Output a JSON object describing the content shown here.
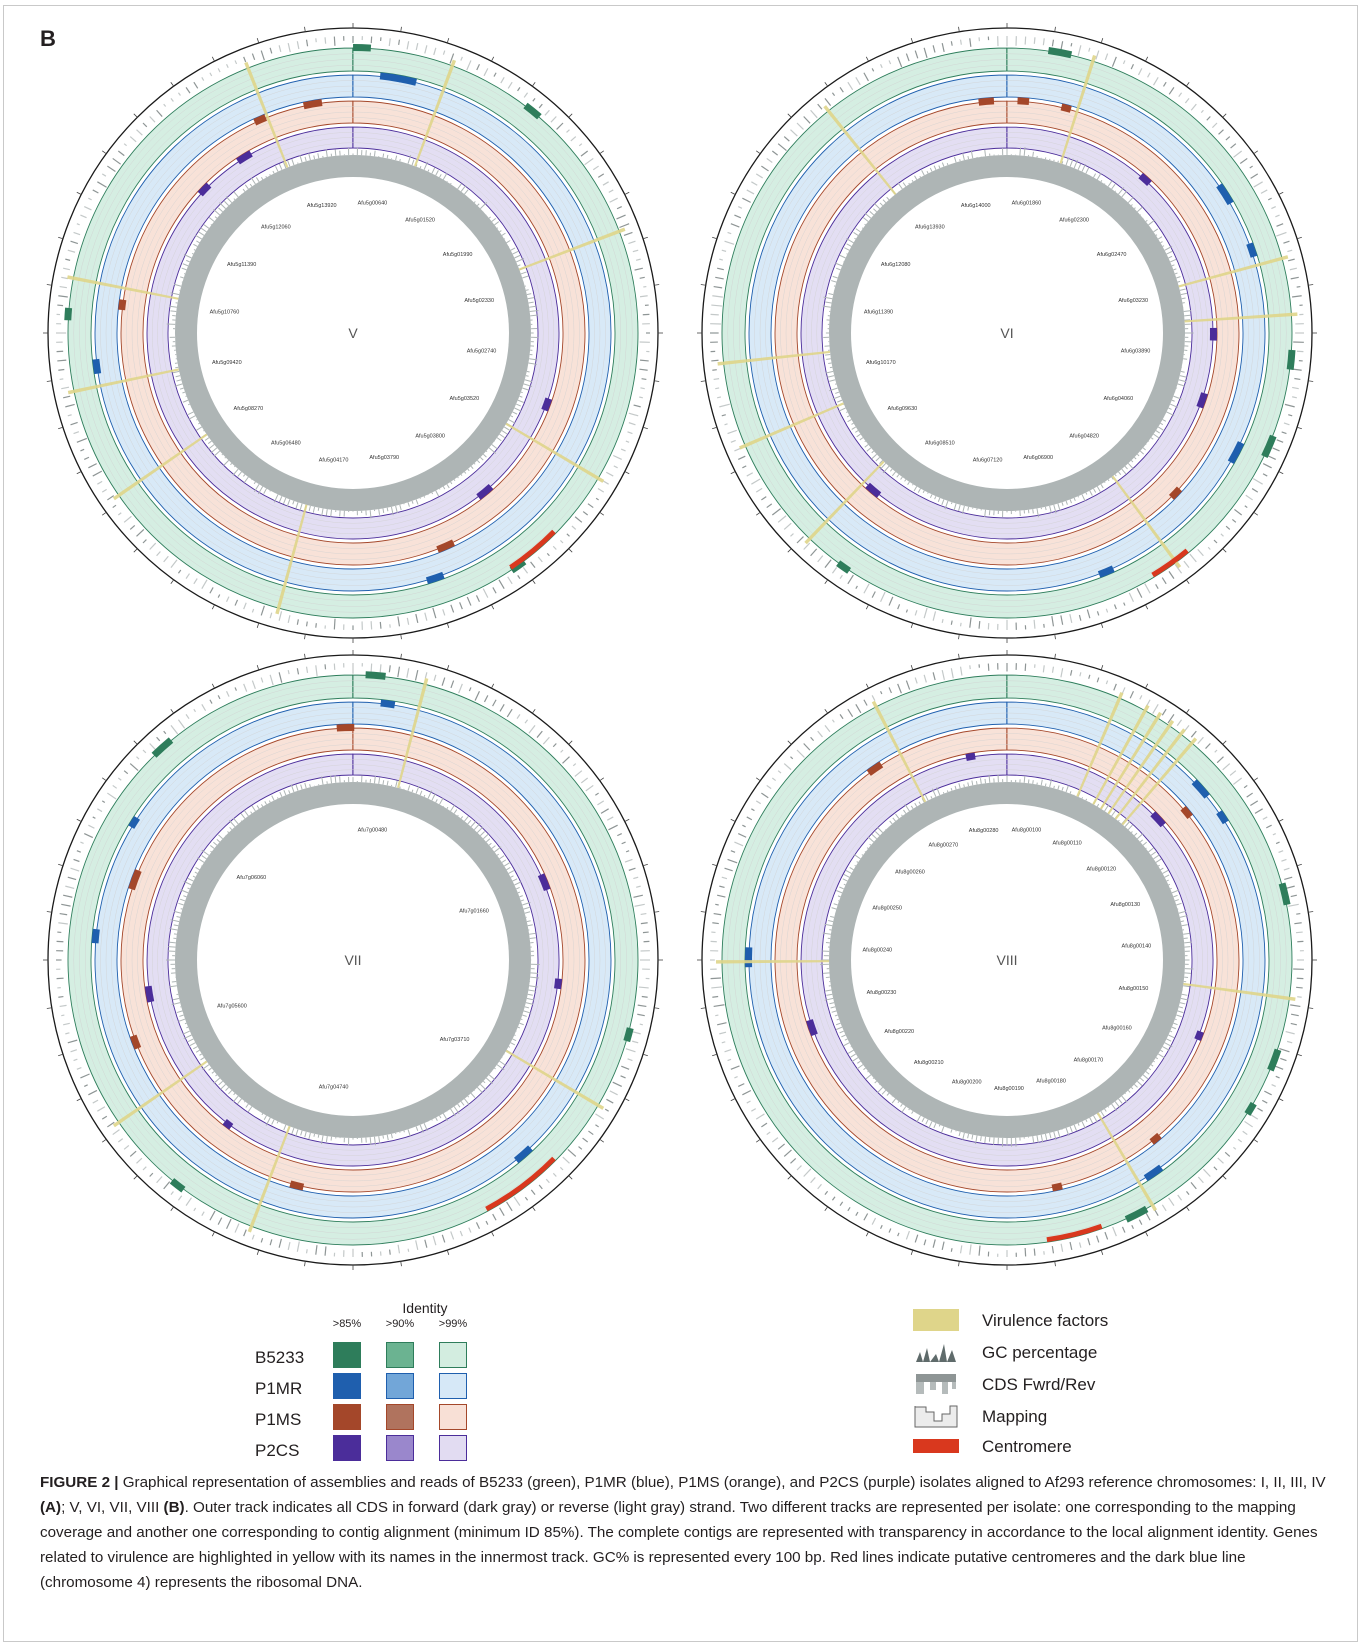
{
  "panel_label": "B",
  "chromosomes": [
    {
      "label": "V",
      "virulence_genes": [
        "Afu5g00640",
        "Afu5g01520",
        "Afu5g01990",
        "Afu5g02330",
        "Afu5g02740",
        "Afu5g03520",
        "Afu5g03800",
        "Afu5g03790",
        "Afu5g04170",
        "Afu5g06480",
        "Afu5g08270",
        "Afu5g09420",
        "Afu5g10760",
        "Afu5g11390",
        "Afu5g12060",
        "Afu5g13920"
      ],
      "centromere": true
    },
    {
      "label": "VI",
      "virulence_genes": [
        "Afu6g01860",
        "Afu6g02300",
        "Afu6g02470",
        "Afu6g03230",
        "Afu6g03890",
        "Afu6g04060",
        "Afu6g04820",
        "Afu6g06900",
        "Afu6g07120",
        "Afu6g08510",
        "Afu6g09630",
        "Afu6g10170",
        "Afu6g11390",
        "Afu6g12080",
        "Afu6g13930",
        "Afu6g14000"
      ],
      "centromere": true
    },
    {
      "label": "VII",
      "virulence_genes": [
        "Afu7g00480",
        "Afu7g01660",
        "Afu7g03710",
        "Afu7g04740",
        "Afu7g05600",
        "Afu7g06060"
      ],
      "centromere": true
    },
    {
      "label": "VIII",
      "virulence_genes": [
        "Afu8g00100",
        "Afu8g00110",
        "Afu8g00120",
        "Afu8g00130",
        "Afu8g00140",
        "Afu8g00150",
        "Afu8g00160",
        "Afu8g00170",
        "Afu8g00180",
        "Afu8g00190",
        "Afu8g00200",
        "Afu8g00210",
        "Afu8g00220",
        "Afu8g00230",
        "Afu8g00240",
        "Afu8g00250",
        "Afu8g00260",
        "Afu8g00270",
        "Afu8g00280"
      ],
      "centromere": true
    }
  ],
  "identity_legend": {
    "title": "Identity",
    "columns": [
      ">85%",
      ">90%",
      ">99%"
    ],
    "isolates": [
      {
        "name": "B5233",
        "colors": [
          "#2e7d5b",
          "#6bb391",
          "#d3ede0"
        ],
        "border": "#2e7d5b"
      },
      {
        "name": "P1MR",
        "colors": [
          "#1f5fae",
          "#72a6d8",
          "#d6e8f7"
        ],
        "border": "#1f5fae"
      },
      {
        "name": "P1MS",
        "colors": [
          "#a4472a",
          "#b0735e",
          "#f8e0d6"
        ],
        "border": "#a4472a"
      },
      {
        "name": "P2CS",
        "colors": [
          "#4b2d9a",
          "#9a87cc",
          "#e2dcf2"
        ],
        "border": "#4b2d9a"
      }
    ]
  },
  "track_legend": [
    {
      "label": "Virulence factors",
      "icon": "virulence-swatch",
      "color": "#dfd58a"
    },
    {
      "label": "GC percentage",
      "icon": "gc-peaks",
      "color": "#5f6b6b"
    },
    {
      "label": "CDS Fwrd/Rev",
      "icon": "cds-bars",
      "color": "#8e9595"
    },
    {
      "label": "Mapping",
      "icon": "mapping-step",
      "color": "#e6e6e6"
    },
    {
      "label": "Centromere",
      "icon": "centromere-swatch",
      "color": "#d9381e"
    }
  ],
  "caption": {
    "prefix": "FIGURE 2 |",
    "part1": " Graphical representation of assemblies and reads of B5233 (green), P1MR (blue), P1MS (orange), and P2CS (purple) isolates aligned to Af293 reference chromosomes: I, II, III, IV ",
    "bold_a": "(A)",
    "part2": "; V, VI, VII, VIII ",
    "bold_b": "(B)",
    "part3": ". Outer track indicates all CDS in forward (dark gray) or reverse (light gray) strand. Two different tracks are represented per isolate: one corresponding to the mapping coverage and another one corresponding to contig alignment (minimum ID 85%). The complete contigs are represented with transparency in accordance to the local alignment identity. Genes related to virulence are highlighted in yellow with its names in the innermost track. GC% is represented every 100 bp. Red lines indicate putative centromeres and the dark blue line (chromosome 4) represents the ribosomal DNA."
  }
}
